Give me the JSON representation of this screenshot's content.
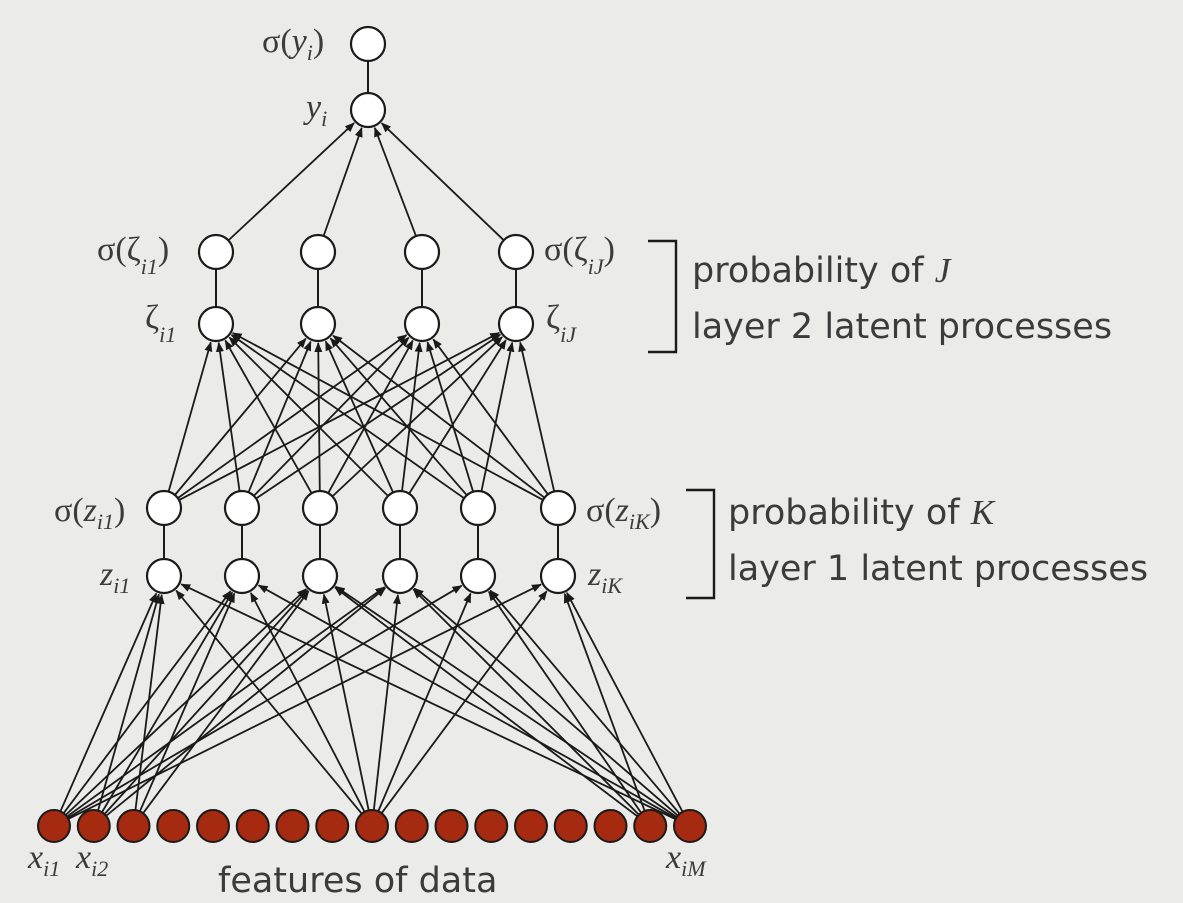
{
  "output_layer": {
    "sigma_label": {
      "pre": "σ(",
      "var": "y",
      "sub": "i",
      "post": ")"
    },
    "value_label": {
      "var": "y",
      "sub": "i"
    }
  },
  "layer2": {
    "node_count": 4,
    "first_sigma_label": {
      "pre": "σ(",
      "var": "ζ",
      "sub": "i1",
      "post": ")"
    },
    "first_value_label": {
      "var": "ζ",
      "sub": "i1"
    },
    "last_sigma_label": {
      "pre": "σ(",
      "var": "ζ",
      "sub": "iJ",
      "post": ")"
    },
    "last_value_label": {
      "var": "ζ",
      "sub": "iJ"
    },
    "caption_line1_text": "probability of ",
    "caption_line1_var": "J",
    "caption_line2": "layer 2 latent processes"
  },
  "layer1": {
    "node_count": 6,
    "first_sigma_label": {
      "pre": "σ(",
      "var": "z",
      "sub": "i1",
      "post": ")"
    },
    "first_value_label": {
      "var": "z",
      "sub": "i1"
    },
    "last_sigma_label": {
      "pre": "σ(",
      "var": "z",
      "sub": "iK",
      "post": ")"
    },
    "last_value_label": {
      "var": "z",
      "sub": "iK"
    },
    "caption_line1_text": "probability of ",
    "caption_line1_var": "K",
    "caption_line2": "layer 1 latent processes"
  },
  "features": {
    "node_count": 17,
    "label_first": {
      "var": "x",
      "sub": "i1"
    },
    "label_second": {
      "var": "x",
      "sub": "i2"
    },
    "label_last": {
      "var": "x",
      "sub": "iM"
    },
    "caption": "features of data"
  },
  "colors": {
    "feature_node": "#a52a10",
    "open_node": "#ffffff",
    "ink": "#1a1a1a",
    "text": "#3b3b3b",
    "background": "#ebebea"
  }
}
